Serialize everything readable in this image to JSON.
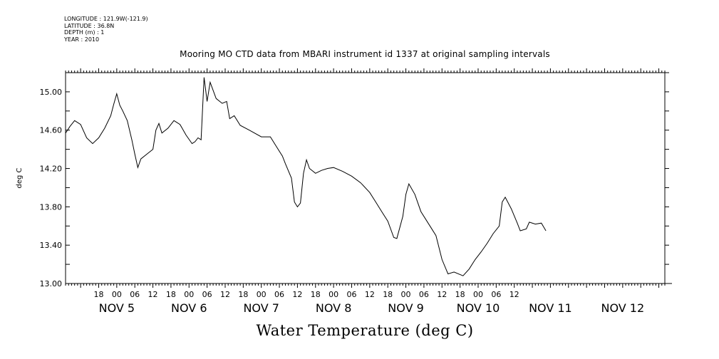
{
  "meta": {
    "longitude": "LONGITUDE : 121.9W(-121.9)",
    "latitude": "LATITUDE : 36.8N",
    "depth": "DEPTH (m) : 1",
    "year": "YEAR : 2010"
  },
  "chart_data": {
    "type": "line",
    "title": "Mooring MO CTD data from MBARI instrument id 1337 at original sampling intervals",
    "xlabel": "Water Temperature (deg C)",
    "ylabel": "deg C",
    "xlim": [
      "2010-11-04 07:00",
      "2010-11-12 14:00"
    ],
    "ylim": [
      13.0,
      15.2
    ],
    "yticks": [
      13.0,
      13.4,
      13.8,
      14.2,
      14.6,
      15.0
    ],
    "ytick_labels": [
      "13.00",
      "13.40",
      "13.80",
      "14.20",
      "14.60",
      "15.00"
    ],
    "x_hour_labels": [
      {
        "t": "2010-11-04 18:00",
        "label": "18"
      },
      {
        "t": "2010-11-05 00:00",
        "label": "00"
      },
      {
        "t": "2010-11-05 06:00",
        "label": "06"
      },
      {
        "t": "2010-11-05 12:00",
        "label": "12"
      },
      {
        "t": "2010-11-05 18:00",
        "label": "18"
      },
      {
        "t": "2010-11-06 00:00",
        "label": "00"
      },
      {
        "t": "2010-11-06 06:00",
        "label": "06"
      },
      {
        "t": "2010-11-06 12:00",
        "label": "12"
      },
      {
        "t": "2010-11-06 18:00",
        "label": "18"
      },
      {
        "t": "2010-11-07 00:00",
        "label": "00"
      },
      {
        "t": "2010-11-07 06:00",
        "label": "06"
      },
      {
        "t": "2010-11-07 12:00",
        "label": "12"
      },
      {
        "t": "2010-11-07 18:00",
        "label": "18"
      },
      {
        "t": "2010-11-08 00:00",
        "label": "00"
      },
      {
        "t": "2010-11-08 06:00",
        "label": "06"
      },
      {
        "t": "2010-11-08 12:00",
        "label": "12"
      },
      {
        "t": "2010-11-08 18:00",
        "label": "18"
      },
      {
        "t": "2010-11-09 00:00",
        "label": "00"
      },
      {
        "t": "2010-11-09 06:00",
        "label": "06"
      },
      {
        "t": "2010-11-09 12:00",
        "label": "12"
      },
      {
        "t": "2010-11-09 18:00",
        "label": "18"
      },
      {
        "t": "2010-11-10 00:00",
        "label": "00"
      },
      {
        "t": "2010-11-10 06:00",
        "label": "06"
      },
      {
        "t": "2010-11-10 12:00",
        "label": "12"
      }
    ],
    "x_day_labels": [
      {
        "t": "2010-11-05 00:00",
        "label": "NOV  5"
      },
      {
        "t": "2010-11-06 00:00",
        "label": "NOV  6"
      },
      {
        "t": "2010-11-07 00:00",
        "label": "NOV  7"
      },
      {
        "t": "2010-11-08 00:00",
        "label": "NOV  8"
      },
      {
        "t": "2010-11-09 00:00",
        "label": "NOV  9"
      },
      {
        "t": "2010-11-10 00:00",
        "label": "NOV 10"
      },
      {
        "t": "2010-11-11 00:00",
        "label": "NOV 11"
      },
      {
        "t": "2010-11-12 00:00",
        "label": "NOV 12"
      }
    ],
    "grid": false,
    "series": [
      {
        "color": "#000000",
        "points": [
          [
            "2010-11-04 07:00",
            14.57
          ],
          [
            "2010-11-04 08:30",
            14.64
          ],
          [
            "2010-11-04 10:00",
            14.7
          ],
          [
            "2010-11-04 12:00",
            14.66
          ],
          [
            "2010-11-04 14:00",
            14.52
          ],
          [
            "2010-11-04 16:00",
            14.46
          ],
          [
            "2010-11-04 18:00",
            14.52
          ],
          [
            "2010-11-04 20:00",
            14.62
          ],
          [
            "2010-11-04 22:00",
            14.75
          ],
          [
            "2010-11-04 23:00",
            14.87
          ],
          [
            "2010-11-05 00:00",
            14.98
          ],
          [
            "2010-11-05 01:00",
            14.86
          ],
          [
            "2010-11-05 02:00",
            14.8
          ],
          [
            "2010-11-05 03:30",
            14.7
          ],
          [
            "2010-11-05 05:00",
            14.5
          ],
          [
            "2010-11-05 06:00",
            14.35
          ],
          [
            "2010-11-05 07:00",
            14.21
          ],
          [
            "2010-11-05 08:00",
            14.3
          ],
          [
            "2010-11-05 10:00",
            14.35
          ],
          [
            "2010-11-05 12:00",
            14.4
          ],
          [
            "2010-11-05 13:00",
            14.6
          ],
          [
            "2010-11-05 14:00",
            14.67
          ],
          [
            "2010-11-05 15:00",
            14.57
          ],
          [
            "2010-11-05 17:00",
            14.62
          ],
          [
            "2010-11-05 19:00",
            14.7
          ],
          [
            "2010-11-05 21:00",
            14.66
          ],
          [
            "2010-11-05 23:00",
            14.55
          ],
          [
            "2010-11-06 01:00",
            14.46
          ],
          [
            "2010-11-06 02:00",
            14.48
          ],
          [
            "2010-11-06 03:00",
            14.52
          ],
          [
            "2010-11-06 04:00",
            14.5
          ],
          [
            "2010-11-06 05:00",
            15.15
          ],
          [
            "2010-11-06 06:00",
            14.9
          ],
          [
            "2010-11-06 07:00",
            15.1
          ],
          [
            "2010-11-06 09:00",
            14.93
          ],
          [
            "2010-11-06 11:00",
            14.88
          ],
          [
            "2010-11-06 12:30",
            14.9
          ],
          [
            "2010-11-06 13:30",
            14.72
          ],
          [
            "2010-11-06 15:00",
            14.75
          ],
          [
            "2010-11-06 17:00",
            14.65
          ],
          [
            "2010-11-06 20:00",
            14.6
          ],
          [
            "2010-11-07 00:00",
            14.53
          ],
          [
            "2010-11-07 03:00",
            14.53
          ],
          [
            "2010-11-07 05:00",
            14.43
          ],
          [
            "2010-11-07 07:00",
            14.33
          ],
          [
            "2010-11-07 08:00",
            14.25
          ],
          [
            "2010-11-07 10:00",
            14.1
          ],
          [
            "2010-11-07 11:00",
            13.85
          ],
          [
            "2010-11-07 12:00",
            13.8
          ],
          [
            "2010-11-07 13:00",
            13.84
          ],
          [
            "2010-11-07 14:00",
            14.15
          ],
          [
            "2010-11-07 15:00",
            14.29
          ],
          [
            "2010-11-07 16:00",
            14.2
          ],
          [
            "2010-11-07 18:00",
            14.15
          ],
          [
            "2010-11-07 20:00",
            14.18
          ],
          [
            "2010-11-07 22:00",
            14.2
          ],
          [
            "2010-11-08 00:00",
            14.21
          ],
          [
            "2010-11-08 03:00",
            14.17
          ],
          [
            "2010-11-08 06:00",
            14.12
          ],
          [
            "2010-11-08 09:00",
            14.05
          ],
          [
            "2010-11-08 12:00",
            13.95
          ],
          [
            "2010-11-08 14:00",
            13.85
          ],
          [
            "2010-11-08 16:00",
            13.75
          ],
          [
            "2010-11-08 18:00",
            13.65
          ],
          [
            "2010-11-08 20:00",
            13.48
          ],
          [
            "2010-11-08 21:00",
            13.47
          ],
          [
            "2010-11-08 23:00",
            13.7
          ],
          [
            "2010-11-09 00:00",
            13.93
          ],
          [
            "2010-11-09 01:00",
            14.04
          ],
          [
            "2010-11-09 03:00",
            13.93
          ],
          [
            "2010-11-09 05:00",
            13.75
          ],
          [
            "2010-11-09 08:00",
            13.6
          ],
          [
            "2010-11-09 10:00",
            13.5
          ],
          [
            "2010-11-09 12:00",
            13.25
          ],
          [
            "2010-11-09 14:00",
            13.1
          ],
          [
            "2010-11-09 16:00",
            13.12
          ],
          [
            "2010-11-09 19:00",
            13.08
          ],
          [
            "2010-11-09 21:00",
            13.15
          ],
          [
            "2010-11-09 23:00",
            13.25
          ],
          [
            "2010-11-10 01:00",
            13.33
          ],
          [
            "2010-11-10 03:00",
            13.42
          ],
          [
            "2010-11-10 05:00",
            13.52
          ],
          [
            "2010-11-10 07:00",
            13.6
          ],
          [
            "2010-11-10 08:00",
            13.85
          ],
          [
            "2010-11-10 09:00",
            13.9
          ],
          [
            "2010-11-10 11:00",
            13.78
          ],
          [
            "2010-11-10 13:00",
            13.63
          ],
          [
            "2010-11-10 14:00",
            13.55
          ],
          [
            "2010-11-10 16:00",
            13.57
          ],
          [
            "2010-11-10 17:00",
            13.64
          ],
          [
            "2010-11-10 19:00",
            13.62
          ],
          [
            "2010-11-10 21:00",
            13.63
          ],
          [
            "2010-11-10 22:30",
            13.55
          ]
        ]
      }
    ]
  }
}
